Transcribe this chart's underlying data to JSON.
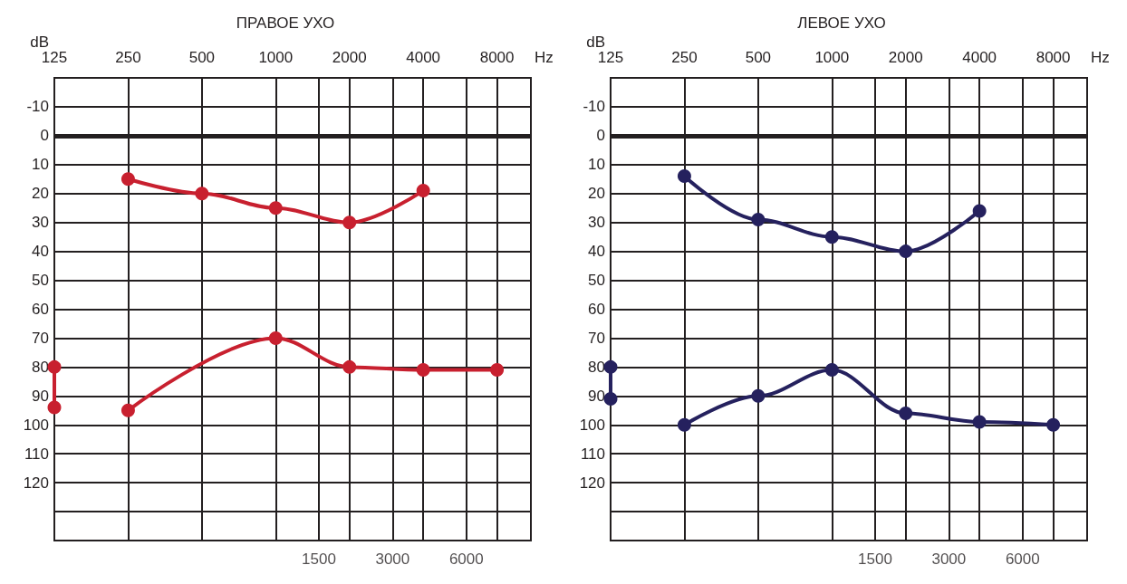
{
  "chart_data": [
    {
      "type": "line",
      "title": "ПРАВОЕ УХО",
      "ylabel": "dB",
      "xlabel": "Hz",
      "log": "x",
      "xlim": [
        125,
        11000
      ],
      "ylim": [
        140,
        -20
      ],
      "xticks": [
        125,
        250,
        500,
        1000,
        {
          "value": 1500,
          "label": null
        },
        2000,
        {
          "value": 3000,
          "label": null
        },
        4000,
        {
          "value": 6000,
          "label": null
        },
        8000
      ],
      "annotations": [
        "1500",
        "3000",
        "6000"
      ],
      "yticks": [
        -10,
        0,
        10,
        20,
        30,
        40,
        50,
        60,
        70,
        80,
        90,
        100,
        110,
        120,
        {
          "value": 130,
          "label": null
        }
      ],
      "grid": true,
      "marker": "circle",
      "line_style": "solid",
      "ref_lines": [
        {
          "axis": "y",
          "value": 0,
          "color": "#231f20"
        }
      ],
      "series": [
        {
          "color": "#c8202f",
          "x": [
            250,
            500,
            1000,
            2000,
            4000
          ],
          "values": [
            15,
            20,
            25,
            30,
            19
          ]
        },
        {
          "color": "#c8202f",
          "x": [
            125,
            125
          ],
          "values": [
            80,
            94
          ]
        },
        {
          "color": "#c8202f",
          "x": [
            250,
            1000,
            2000,
            4000,
            8000
          ],
          "values": [
            95,
            70,
            80,
            81,
            81
          ]
        }
      ]
    },
    {
      "type": "line",
      "title": "ЛЕВОЕ УХО",
      "ylabel": "dB",
      "xlabel": "Hz",
      "log": "x",
      "xlim": [
        125,
        11000
      ],
      "ylim": [
        140,
        -20
      ],
      "xticks": [
        125,
        250,
        500,
        1000,
        {
          "value": 1500,
          "label": null
        },
        2000,
        {
          "value": 3000,
          "label": null
        },
        4000,
        {
          "value": 6000,
          "label": null
        },
        8000
      ],
      "annotations": [
        "1500",
        "3000",
        "6000"
      ],
      "yticks": [
        -10,
        0,
        10,
        20,
        30,
        40,
        50,
        60,
        70,
        80,
        90,
        100,
        110,
        120,
        {
          "value": 130,
          "label": null
        }
      ],
      "grid": true,
      "marker": "circle",
      "line_style": "solid",
      "ref_lines": [
        {
          "axis": "y",
          "value": 0,
          "color": "#231f20"
        }
      ],
      "series": [
        {
          "color": "#25215e",
          "x": [
            250,
            500,
            1000,
            2000,
            4000
          ],
          "values": [
            14,
            29,
            35,
            40,
            26
          ]
        },
        {
          "color": "#25215e",
          "x": [
            125,
            125
          ],
          "values": [
            80,
            91
          ]
        },
        {
          "color": "#25215e",
          "x": [
            250,
            500,
            1000,
            2000,
            4000,
            8000
          ],
          "values": [
            100,
            90,
            81,
            96,
            99,
            100
          ]
        }
      ]
    }
  ]
}
